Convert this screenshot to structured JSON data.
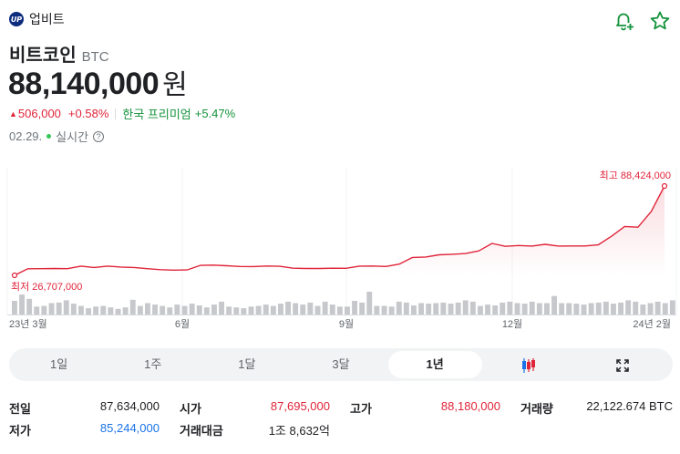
{
  "header": {
    "logo_text": "UP",
    "exchange_name": "업비트"
  },
  "actions": {
    "alert_icon": "bell-plus-icon",
    "favorite_icon": "star-icon"
  },
  "coin": {
    "name": "비트코인",
    "symbol": "BTC"
  },
  "price": {
    "value": "88,140,000",
    "unit": "원"
  },
  "change": {
    "amount": "506,000",
    "percent": "+0.58%",
    "premium_label": "한국 프리미엄",
    "premium_value": "+5.47%"
  },
  "time": {
    "date": "02.29.",
    "live_label": "실시간",
    "info_icon": "?"
  },
  "colors": {
    "up": "#e0253a",
    "down": "#1a73e8",
    "live": "#34c759",
    "premium": "#14933b"
  },
  "chart_data": {
    "type": "line",
    "x_tick_labels": [
      "23년 3월",
      "6월",
      "9월",
      "12월",
      "24년 2월"
    ],
    "annotations": {
      "high": "최고 88,424,000",
      "low": "최저 26,707,000"
    },
    "price_series": [
      26.7,
      31.2,
      31.3,
      31.4,
      31.3,
      33.0,
      32.1,
      33.0,
      32.4,
      32.1,
      31.3,
      30.6,
      30.3,
      30.4,
      33.5,
      33.7,
      33.3,
      32.8,
      32.7,
      33.1,
      32.9,
      31.6,
      31.4,
      31.4,
      31.6,
      31.5,
      33.0,
      33.1,
      32.8,
      34.4,
      39.0,
      39.3,
      40.8,
      41.2,
      41.7,
      43.5,
      48.6,
      46.6,
      47.2,
      46.8,
      48.0,
      46.8,
      46.9,
      46.9,
      47.6,
      53.5,
      60.3,
      59.8,
      70.5,
      88.1
    ],
    "volume_series": [
      48,
      70,
      55,
      28,
      30,
      40,
      42,
      50,
      38,
      30,
      22,
      28,
      30,
      25,
      20,
      25,
      52,
      30,
      40,
      35,
      30,
      25,
      35,
      30,
      38,
      32,
      25,
      35,
      45,
      28,
      25,
      22,
      28,
      30,
      35,
      30,
      38,
      45,
      40,
      35,
      42,
      30,
      45,
      35,
      28,
      28,
      48,
      42,
      80,
      30,
      30,
      28,
      45,
      42,
      32,
      40,
      38,
      40,
      42,
      38,
      42,
      50,
      45,
      30,
      35,
      32,
      42,
      45,
      40,
      38,
      45,
      40,
      40,
      65,
      40,
      40,
      38,
      35,
      40,
      42,
      45,
      38,
      42,
      50,
      45,
      35,
      40,
      45,
      40,
      50
    ]
  },
  "tabs": [
    {
      "label": "1일"
    },
    {
      "label": "1주"
    },
    {
      "label": "1달"
    },
    {
      "label": "3달"
    },
    {
      "label": "1년"
    },
    {
      "label": "",
      "icon": "candlestick-icon"
    },
    {
      "label": "",
      "icon": "expand-icon"
    }
  ],
  "stats": {
    "prev_close": {
      "label": "전일",
      "value": "87,634,000"
    },
    "open": {
      "label": "시가",
      "value": "87,695,000"
    },
    "high": {
      "label": "고가",
      "value": "88,180,000"
    },
    "volume": {
      "label": "거래량",
      "value": "22,122.674 BTC"
    },
    "low": {
      "label": "저가",
      "value": "85,244,000"
    },
    "turnover": {
      "label": "거래대금",
      "value": "1조 8,632억"
    }
  }
}
